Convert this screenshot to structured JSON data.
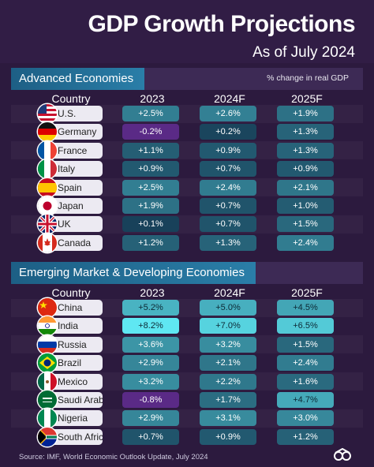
{
  "title": "GDP Growth Projections",
  "subtitle": "As of July 2024",
  "pct_note": "% change in real GDP",
  "source": "Source: IMF, World Economic Outlook Update, July 2024",
  "columns": [
    "Country",
    "2023",
    "2024F",
    "2025F"
  ],
  "colors": {
    "background": "#2c1a3e",
    "section_tag": "#2a7ea8",
    "negative": "#5a2a86",
    "scale_low": "#163c55",
    "scale_high": "#5fe7f2"
  },
  "chart_data": {
    "type": "table",
    "sections": [
      {
        "name": "Advanced Economies",
        "rows": [
          {
            "country": "U.S.",
            "flag": "us-flag-icon",
            "values": [
              "+2.5%",
              "+2.6%",
              "+1.9%"
            ]
          },
          {
            "country": "Germany",
            "flag": "germany-flag-icon",
            "values": [
              "-0.2%",
              "+0.2%",
              "+1.3%"
            ]
          },
          {
            "country": "France",
            "flag": "france-flag-icon",
            "values": [
              "+1.1%",
              "+0.9%",
              "+1.3%"
            ]
          },
          {
            "country": "Italy",
            "flag": "italy-flag-icon",
            "values": [
              "+0.9%",
              "+0.7%",
              "+0.9%"
            ]
          },
          {
            "country": "Spain",
            "flag": "spain-flag-icon",
            "values": [
              "+2.5%",
              "+2.4%",
              "+2.1%"
            ]
          },
          {
            "country": "Japan",
            "flag": "japan-flag-icon",
            "values": [
              "+1.9%",
              "+0.7%",
              "+1.0%"
            ]
          },
          {
            "country": "UK",
            "flag": "uk-flag-icon",
            "values": [
              "+0.1%",
              "+0.7%",
              "+1.5%"
            ]
          },
          {
            "country": "Canada",
            "flag": "canada-flag-icon",
            "values": [
              "+1.2%",
              "+1.3%",
              "+2.4%"
            ]
          }
        ]
      },
      {
        "name": "Emerging Market & Developing Economies",
        "rows": [
          {
            "country": "China",
            "flag": "china-flag-icon",
            "values": [
              "+5.2%",
              "+5.0%",
              "+4.5%"
            ]
          },
          {
            "country": "India",
            "flag": "india-flag-icon",
            "values": [
              "+8.2%",
              "+7.0%",
              "+6.5%"
            ]
          },
          {
            "country": "Russia",
            "flag": "russia-flag-icon",
            "values": [
              "+3.6%",
              "+3.2%",
              "+1.5%"
            ]
          },
          {
            "country": "Brazil",
            "flag": "brazil-flag-icon",
            "values": [
              "+2.9%",
              "+2.1%",
              "+2.4%"
            ]
          },
          {
            "country": "Mexico",
            "flag": "mexico-flag-icon",
            "values": [
              "+3.2%",
              "+2.2%",
              "+1.6%"
            ]
          },
          {
            "country": "Saudi Arabia",
            "flag": "saudi-arabia-flag-icon",
            "values": [
              "-0.8%",
              "+1.7%",
              "+4.7%"
            ]
          },
          {
            "country": "Nigeria",
            "flag": "nigeria-flag-icon",
            "values": [
              "+2.9%",
              "+3.1%",
              "+3.0%"
            ]
          },
          {
            "country": "South Africa",
            "flag": "south-africa-flag-icon",
            "values": [
              "+0.7%",
              "+0.9%",
              "+1.2%"
            ]
          }
        ]
      }
    ]
  }
}
